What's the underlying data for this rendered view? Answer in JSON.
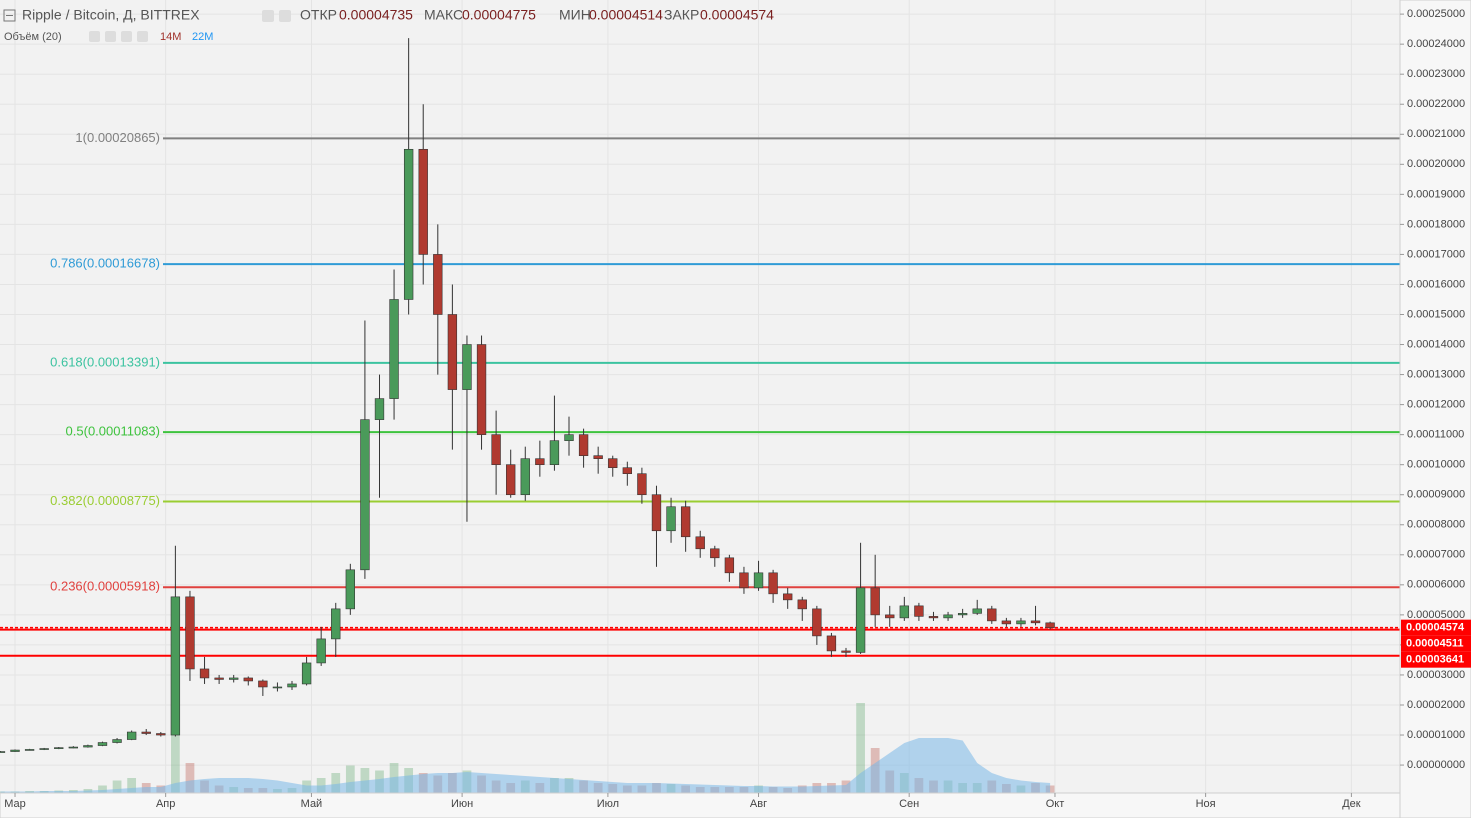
{
  "chart_data": {
    "type": "candlestick",
    "header": {
      "symbol": "Ripple / Bitcoin, Д, BITTREX",
      "ohlc": [
        {
          "label": "ОТКР",
          "value": "0.00004735"
        },
        {
          "label": "МАКС",
          "value": "0.00004775"
        },
        {
          "label": "МИН",
          "value": "0.00004514"
        },
        {
          "label": "ЗАКР",
          "value": "0.00004574"
        }
      ],
      "volume_label": "Объём (20)",
      "volume_values": [
        {
          "text": "14M",
          "color": "#a0312a"
        },
        {
          "text": "22M",
          "color": "#2196f3"
        }
      ]
    },
    "up_color": "#4a9a5a",
    "down_color": "#b03a30",
    "volume_ma_color": "#7ab8e8",
    "xlim": [
      -3.09,
      285
    ],
    "ylim": [
      -9.3e-06,
      0.0002547
    ],
    "xticks": [
      {
        "value": 0,
        "label": "Мар"
      },
      {
        "value": 31,
        "label": "Апр"
      },
      {
        "value": 61,
        "label": "Май"
      },
      {
        "value": 92,
        "label": "Июн"
      },
      {
        "value": 122,
        "label": "Июл"
      },
      {
        "value": 153,
        "label": "Авг"
      },
      {
        "value": 184,
        "label": "Сен"
      },
      {
        "value": 214,
        "label": "Окт"
      },
      {
        "value": 245,
        "label": "Ноя"
      },
      {
        "value": 275,
        "label": "Дек"
      }
    ],
    "yticks": [
      {
        "value": 0,
        "label": "0.00000000"
      },
      {
        "value": 1e-05,
        "label": "0.00001000"
      },
      {
        "value": 2e-05,
        "label": "0.00002000"
      },
      {
        "value": 3e-05,
        "label": "0.00003000"
      },
      {
        "value": 4e-05,
        "label": "0.00004000"
      },
      {
        "value": 5e-05,
        "label": "0.00005000"
      },
      {
        "value": 6e-05,
        "label": "0.00006000"
      },
      {
        "value": 7e-05,
        "label": "0.00007000"
      },
      {
        "value": 8e-05,
        "label": "0.00008000"
      },
      {
        "value": 9e-05,
        "label": "0.00009000"
      },
      {
        "value": 0.0001,
        "label": "0.00010000"
      },
      {
        "value": 0.00011,
        "label": "0.00011000"
      },
      {
        "value": 0.00012,
        "label": "0.00012000"
      },
      {
        "value": 0.00013,
        "label": "0.00013000"
      },
      {
        "value": 0.00014,
        "label": "0.00014000"
      },
      {
        "value": 0.00015,
        "label": "0.00015000"
      },
      {
        "value": 0.00016,
        "label": "0.00016000"
      },
      {
        "value": 0.00017,
        "label": "0.00017000"
      },
      {
        "value": 0.00018,
        "label": "0.00018000"
      },
      {
        "value": 0.00019,
        "label": "0.00019000"
      },
      {
        "value": 0.0002,
        "label": "0.00020000"
      },
      {
        "value": 0.00021,
        "label": "0.00021000"
      },
      {
        "value": 0.00022,
        "label": "0.00022000"
      },
      {
        "value": 0.00023,
        "label": "0.00023000"
      },
      {
        "value": 0.00024,
        "label": "0.00024000"
      },
      {
        "value": 0.00025,
        "label": "0.00025000"
      }
    ],
    "grid": true,
    "candles": {
      "x": [
        -3,
        0,
        3,
        6,
        9,
        12,
        15,
        18,
        21,
        24,
        27,
        30,
        33,
        36,
        39,
        42,
        45,
        48,
        51,
        54,
        57,
        60,
        63,
        66,
        69,
        72,
        75,
        78,
        81,
        84,
        87,
        90,
        93,
        96,
        99,
        102,
        105,
        108,
        111,
        114,
        117,
        120,
        123,
        126,
        129,
        132,
        135,
        138,
        141,
        144,
        147,
        150,
        153,
        156,
        159,
        162,
        165,
        168,
        171,
        174,
        177,
        180,
        183,
        186,
        189,
        192,
        195,
        198,
        201,
        204,
        207,
        210,
        213
      ],
      "open": [
        4.4e-06,
        4.5e-06,
        5e-06,
        5.2e-06,
        5.5e-06,
        5.8e-06,
        6e-06,
        6.5e-06,
        7.5e-06,
        8.5e-06,
        1.1e-05,
        1.05e-05,
        1e-05,
        5.6e-05,
        3.2e-05,
        2.9e-05,
        2.85e-05,
        2.9e-05,
        2.8e-05,
        2.6e-05,
        2.6e-05,
        2.7e-05,
        3.4e-05,
        4.2e-05,
        5.2e-05,
        6.5e-05,
        0.000115,
        0.000122,
        0.000155,
        0.000205,
        0.00017,
        0.00015,
        0.000125,
        0.00014,
        0.00011,
        0.0001,
        9e-05,
        0.000102,
        0.0001,
        0.000108,
        0.00011,
        0.000103,
        0.000102,
        9.9e-05,
        9.7e-05,
        9e-05,
        7.8e-05,
        8.6e-05,
        7.6e-05,
        7.2e-05,
        6.9e-05,
        6.4e-05,
        5.9e-05,
        6.4e-05,
        5.7e-05,
        5.5e-05,
        5.2e-05,
        4.3e-05,
        3.8e-05,
        3.75e-05,
        5.9e-05,
        5e-05,
        4.9e-05,
        5.3e-05,
        4.95e-05,
        4.9e-05,
        5e-05,
        5.05e-05,
        5.2e-05,
        4.8e-05,
        4.7e-05,
        4.8e-05,
        4.735e-05
      ],
      "high": [
        4.7e-06,
        5.2e-06,
        5.4e-06,
        5.7e-06,
        6e-06,
        6.3e-06,
        6.8e-06,
        7.8e-06,
        9e-06,
        1.15e-05,
        1.2e-05,
        1.1e-05,
        7.3e-05,
        5.8e-05,
        3.6e-05,
        3e-05,
        3e-05,
        2.95e-05,
        2.85e-05,
        2.75e-05,
        2.8e-05,
        3.6e-05,
        4.6e-05,
        5.4e-05,
        6.7e-05,
        0.000148,
        0.00013,
        0.000165,
        0.000242,
        0.00022,
        0.00018,
        0.00016,
        0.000143,
        0.000143,
        0.000118,
        0.000105,
        0.000106,
        0.000108,
        0.000123,
        0.000116,
        0.000112,
        0.000106,
        0.000103,
        0.000101,
        9.9e-05,
        9.3e-05,
        8.9e-05,
        8.8e-05,
        7.8e-05,
        7.3e-05,
        7e-05,
        6.6e-05,
        6.8e-05,
        6.5e-05,
        5.9e-05,
        5.6e-05,
        5.3e-05,
        4.4e-05,
        3.9e-05,
        7.4e-05,
        7e-05,
        5.3e-05,
        5.6e-05,
        5.4e-05,
        5.1e-05,
        5.1e-05,
        5.2e-05,
        5.5e-05,
        5.3e-05,
        4.9e-05,
        4.9e-05,
        5.3e-05,
        4.775e-05
      ],
      "low": [
        4.3e-06,
        4.4e-06,
        4.9e-06,
        5e-06,
        5.3e-06,
        5.6e-06,
        5.8e-06,
        6.3e-06,
        7.2e-06,
        8.3e-06,
        1e-05,
        9.5e-06,
        9.5e-06,
        2.8e-05,
        2.7e-05,
        2.7e-05,
        2.75e-05,
        2.65e-05,
        2.3e-05,
        2.45e-05,
        2.5e-05,
        2.65e-05,
        3.3e-05,
        3.6e-05,
        5e-05,
        6.2e-05,
        8.9e-05,
        0.000115,
        0.00015,
        0.00016,
        0.00013,
        0.000105,
        8.1e-05,
        0.000105,
        9e-05,
        8.9e-05,
        8.8e-05,
        9.6e-05,
        9.8e-05,
        0.000103,
        9.9e-05,
        9.7e-05,
        9.6e-05,
        9.3e-05,
        8.7e-05,
        6.6e-05,
        7.4e-05,
        7.1e-05,
        6.9e-05,
        6.6e-05,
        6.1e-05,
        5.7e-05,
        5.8e-05,
        5.4e-05,
        5.2e-05,
        4.8e-05,
        4e-05,
        3.6e-05,
        3.6e-05,
        3.7e-05,
        4.6e-05,
        4.6e-05,
        4.8e-05,
        4.8e-05,
        4.8e-05,
        4.8e-05,
        4.9e-05,
        5e-05,
        4.7e-05,
        4.6e-05,
        4.6e-05,
        4.65e-05,
        4.514e-05
      ],
      "close": [
        4.5e-06,
        5e-06,
        5.2e-06,
        5.5e-06,
        5.8e-06,
        6e-06,
        6.5e-06,
        7.5e-06,
        8.5e-06,
        1.1e-05,
        1.05e-05,
        1e-05,
        5.6e-05,
        3.2e-05,
        2.9e-05,
        2.85e-05,
        2.9e-05,
        2.8e-05,
        2.6e-05,
        2.6e-05,
        2.7e-05,
        3.4e-05,
        4.2e-05,
        5.2e-05,
        6.5e-05,
        0.000115,
        0.000122,
        0.000155,
        0.000205,
        0.00017,
        0.00015,
        0.000125,
        0.00014,
        0.00011,
        0.0001,
        9e-05,
        0.000102,
        0.0001,
        0.000108,
        0.00011,
        0.000103,
        0.000102,
        9.9e-05,
        9.7e-05,
        9e-05,
        7.8e-05,
        8.6e-05,
        7.6e-05,
        7.2e-05,
        6.9e-05,
        6.4e-05,
        5.9e-05,
        6.4e-05,
        5.7e-05,
        5.5e-05,
        5.2e-05,
        4.3e-05,
        3.8e-05,
        3.75e-05,
        5.9e-05,
        5e-05,
        4.9e-05,
        5.3e-05,
        4.95e-05,
        4.9e-05,
        5e-05,
        5.05e-05,
        5.2e-05,
        4.8e-05,
        4.7e-05,
        4.8e-05,
        4.735e-05,
        4.574e-05
      ],
      "volume": [
        3,
        3,
        4,
        4,
        5,
        6,
        8,
        15,
        25,
        30,
        20,
        15,
        120,
        60,
        25,
        15,
        12,
        10,
        10,
        8,
        10,
        25,
        30,
        40,
        55,
        50,
        45,
        60,
        50,
        40,
        35,
        40,
        45,
        35,
        25,
        20,
        25,
        20,
        30,
        30,
        25,
        20,
        18,
        15,
        15,
        20,
        18,
        15,
        12,
        12,
        12,
        12,
        15,
        12,
        10,
        15,
        20,
        20,
        25,
        180,
        90,
        45,
        40,
        30,
        25,
        25,
        20,
        20,
        25,
        18,
        15,
        20,
        15
      ],
      "volume_ma": [
        3,
        3,
        3,
        4,
        4,
        4,
        5,
        6,
        8,
        10,
        12,
        12,
        20,
        25,
        28,
        30,
        30,
        30,
        28,
        25,
        20,
        15,
        15,
        18,
        22,
        25,
        28,
        32,
        35,
        38,
        40,
        40,
        42,
        40,
        38,
        36,
        34,
        32,
        30,
        28,
        26,
        24,
        22,
        20,
        20,
        20,
        19,
        18,
        17,
        16,
        15,
        14,
        14,
        13,
        13,
        13,
        14,
        15,
        16,
        40,
        60,
        80,
        100,
        110,
        110,
        110,
        105,
        60,
        40,
        30,
        25,
        22,
        20
      ]
    },
    "fib_levels": [
      {
        "label": "1(0.00020865)",
        "value": 0.00020865,
        "color": "#808080"
      },
      {
        "label": "0.786(0.00016678)",
        "value": 0.00016678,
        "color": "#2f9bd6"
      },
      {
        "label": "0.618(0.00013391)",
        "value": 0.00013391,
        "color": "#3cc3a0"
      },
      {
        "label": "0.5(0.00011083)",
        "value": 0.00011083,
        "color": "#3ec33e"
      },
      {
        "label": "0.382(0.00008775)",
        "value": 8.775e-05,
        "color": "#9acd32"
      },
      {
        "label": "0.236(0.00005918)",
        "value": 5.918e-05,
        "color": "#e0413e"
      }
    ],
    "price_tag_color": "#ff0000",
    "price_tags": [
      {
        "value": 4.574e-05,
        "label": "0.00004574",
        "style": "dashed"
      },
      {
        "value": 4.511e-05,
        "label": "0.00004511",
        "style": "solid"
      },
      {
        "value": 3.641e-05,
        "label": "0.00003641",
        "style": "solid"
      }
    ]
  }
}
